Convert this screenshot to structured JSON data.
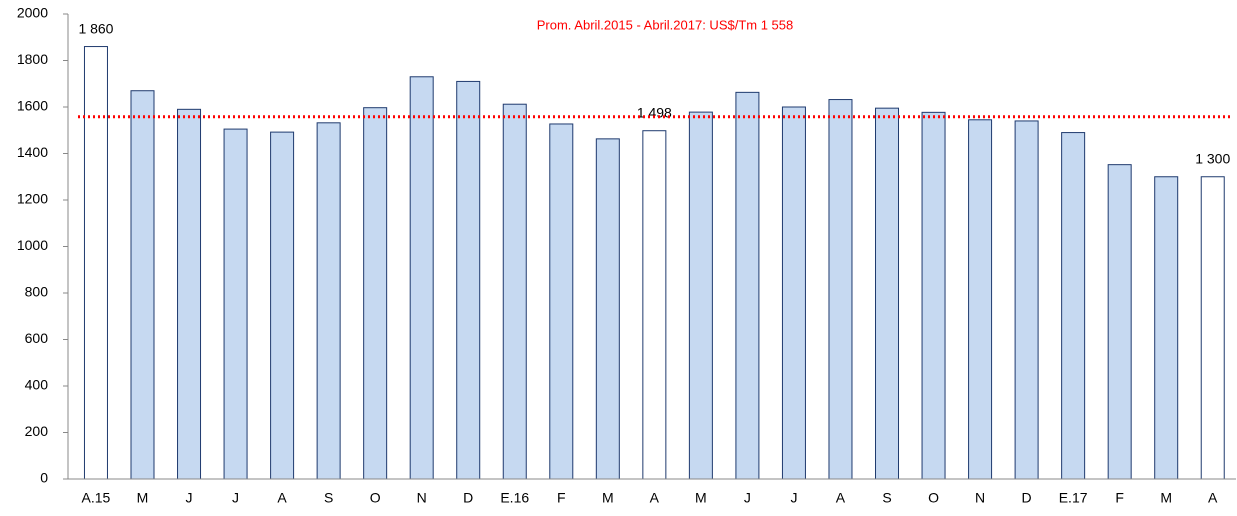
{
  "chart_data": {
    "type": "bar",
    "categories": [
      "A.15",
      "M",
      "J",
      "J",
      "A",
      "S",
      "O",
      "N",
      "D",
      "E.16",
      "F",
      "M",
      "A",
      "M",
      "J",
      "J",
      "A",
      "S",
      "O",
      "N",
      "D",
      "E.17",
      "F",
      "M",
      "A"
    ],
    "values": [
      1860,
      1670,
      1590,
      1505,
      1492,
      1532,
      1597,
      1730,
      1710,
      1612,
      1527,
      1463,
      1498,
      1578,
      1663,
      1600,
      1632,
      1595,
      1577,
      1545,
      1540,
      1490,
      1352,
      1300,
      1300
    ],
    "value_labels": [
      "1 860",
      null,
      null,
      null,
      null,
      null,
      null,
      null,
      null,
      null,
      null,
      null,
      "1 498",
      null,
      null,
      null,
      null,
      null,
      null,
      null,
      null,
      null,
      null,
      null,
      "1 300"
    ],
    "colors": [
      "#ffffff",
      "#c6d9f1",
      "#c6d9f1",
      "#c6d9f1",
      "#c6d9f1",
      "#c6d9f1",
      "#c6d9f1",
      "#c6d9f1",
      "#c6d9f1",
      "#c6d9f1",
      "#c6d9f1",
      "#c6d9f1",
      "#ffffff",
      "#c6d9f1",
      "#c6d9f1",
      "#c6d9f1",
      "#c6d9f1",
      "#c6d9f1",
      "#c6d9f1",
      "#c6d9f1",
      "#c6d9f1",
      "#c6d9f1",
      "#c6d9f1",
      "#c6d9f1",
      "#ffffff"
    ],
    "border_color": "#1f3a6e",
    "reference_line": {
      "value": 1558,
      "label": "Prom. Abril.2015 - Abril.2017: US$/Tm 1 558",
      "color": "#ff0000"
    },
    "ylim": [
      0,
      2000
    ],
    "yticks": [
      0,
      200,
      400,
      600,
      800,
      1000,
      1200,
      1400,
      1600,
      1800,
      2000
    ],
    "grid": false
  }
}
